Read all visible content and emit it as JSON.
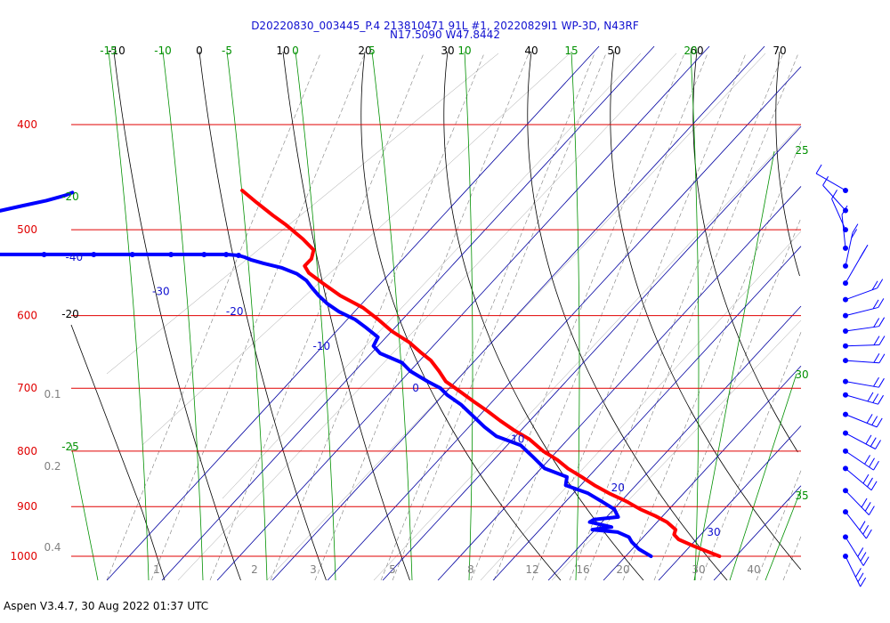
{
  "header": {
    "line1": "D20220830_003445_P.4 213810471 91L #1, 20220829I1 WP-3D, N43RF",
    "line2": "N17.5090 W47.8442"
  },
  "footer": {
    "text": "Aspen V3.4.7, 30 Aug 2022  01:37 UTC"
  },
  "colors": {
    "isobar": "#e00000",
    "temperature": "#ff0000",
    "dewpoint": "#0000ff",
    "dry_adiabat": "#000000",
    "moist_adiabat": "#009000",
    "isotherm": "#0000a0",
    "mixing_ratio": "#808080",
    "label_blue": "#1010d0"
  },
  "chart_data": {
    "type": "line",
    "chart_kind": "skew-T log-P diagram",
    "y_scale": "log",
    "ylim": [
      1000,
      330
    ],
    "isobars": [
      400,
      500,
      600,
      700,
      800,
      900,
      1000
    ],
    "isotherms_c": [
      -80,
      -70,
      -60,
      -50,
      -40,
      -30,
      -20,
      -10,
      0,
      10,
      20,
      30
    ],
    "mixing_ratio_labels": [
      "0.1",
      "0.2",
      "0.4",
      "1",
      "2",
      "3",
      "5",
      "8",
      "12",
      "16",
      "20",
      "30",
      "40"
    ],
    "dry_adiabat_labels": [
      "-10",
      "0",
      "10",
      "20",
      "30",
      "40",
      "50",
      "60",
      "70",
      "-20"
    ],
    "moist_adiabat_labels": [
      "-15",
      "-10",
      "-5",
      "0",
      "5",
      "10",
      "15",
      "20",
      "-20",
      "-25",
      "25",
      "30",
      "35"
    ],
    "series": [
      {
        "name": "Temperature",
        "points": [
          [
            1000,
            27.0
          ],
          [
            980,
            24.2
          ],
          [
            965,
            22.4
          ],
          [
            955,
            22.4
          ],
          [
            945,
            23.5
          ],
          [
            930,
            23.2
          ],
          [
            918,
            22.1
          ],
          [
            905,
            20.5
          ],
          [
            890,
            19.3
          ],
          [
            875,
            17.5
          ],
          [
            860,
            16.2
          ],
          [
            845,
            15.3
          ],
          [
            830,
            14.2
          ],
          [
            815,
            13.7
          ],
          [
            800,
            12.6
          ],
          [
            780,
            12.1
          ],
          [
            765,
            10.8
          ],
          [
            750,
            9.9
          ],
          [
            735,
            9.2
          ],
          [
            720,
            8.3
          ],
          [
            705,
            7.5
          ],
          [
            690,
            6.6
          ],
          [
            675,
            7.1
          ],
          [
            660,
            7.4
          ],
          [
            648,
            6.9
          ],
          [
            635,
            6.5
          ],
          [
            620,
            5.2
          ],
          [
            605,
            4.7
          ],
          [
            590,
            3.9
          ],
          [
            575,
            1.8
          ],
          [
            560,
            0.7
          ],
          [
            548,
            -0.1
          ],
          [
            540,
            0.3
          ],
          [
            532,
            2.7
          ],
          [
            522,
            4.6
          ],
          [
            510,
            4.5
          ],
          [
            495,
            3.8
          ],
          [
            485,
            3.0
          ],
          [
            472,
            2.2
          ],
          [
            460,
            1.6
          ]
        ]
      },
      {
        "name": "Dewpoint",
        "points": [
          [
            1000,
            14.6
          ],
          [
            985,
            13.6
          ],
          [
            970,
            13.5
          ],
          [
            960,
            13.8
          ],
          [
            950,
            12.6
          ],
          [
            945,
            8.4
          ],
          [
            940,
            12.3
          ],
          [
            930,
            9.2
          ],
          [
            925,
            10.4
          ],
          [
            920,
            15.2
          ],
          [
            905,
            15.8
          ],
          [
            890,
            14.8
          ],
          [
            875,
            13.7
          ],
          [
            860,
            11.0
          ],
          [
            845,
            12.6
          ],
          [
            830,
            10.0
          ],
          [
            810,
            9.8
          ],
          [
            790,
            9.5
          ],
          [
            775,
            6.6
          ],
          [
            760,
            6.0
          ],
          [
            740,
            5.7
          ],
          [
            725,
            5.5
          ],
          [
            710,
            4.6
          ],
          [
            700,
            4.5
          ],
          [
            690,
            3.3
          ],
          [
            675,
            1.9
          ],
          [
            663,
            1.8
          ],
          [
            650,
            -0.6
          ],
          [
            640,
            -0.6
          ],
          [
            628,
            1.7
          ],
          [
            615,
            1.1
          ],
          [
            605,
            0.5
          ],
          [
            595,
            -1.1
          ],
          [
            585,
            -1.9
          ],
          [
            575,
            -2.1
          ],
          [
            565,
            -2.0
          ],
          [
            557,
            -1.8
          ],
          [
            549,
            -2.4
          ],
          [
            542,
            -4.2
          ],
          [
            537,
            -6.7
          ],
          [
            533,
            -8.4
          ],
          [
            530,
            -9.1
          ],
          [
            528,
            -9.9
          ],
          [
            527,
            -12.0
          ],
          [
            527,
            -16.0
          ],
          [
            527,
            -22.0
          ],
          [
            527,
            -29.0
          ],
          [
            527,
            -36.0
          ],
          [
            527,
            -45.0
          ],
          [
            527,
            -55.0
          ],
          [
            526,
            -60.0
          ],
          [
            525,
            -62.5
          ],
          [
            520,
            -56.0
          ],
          [
            516,
            -54.2
          ],
          [
            511,
            -55.4
          ],
          [
            505,
            -58.0
          ],
          [
            500,
            -59.5
          ],
          [
            495,
            -56.2
          ],
          [
            490,
            -52.9
          ],
          [
            485,
            -49.8
          ],
          [
            480,
            -45.4
          ],
          [
            475,
            -40.6
          ],
          [
            470,
            -35.6
          ],
          [
            465,
            -31.4
          ],
          [
            462,
            -29.5
          ]
        ]
      }
    ],
    "wind_barbs_pressure_hpa": [
      460,
      480,
      500,
      520,
      540,
      560,
      580,
      600,
      620,
      640,
      660,
      690,
      710,
      740,
      770,
      800,
      830,
      870,
      910,
      960,
      1000
    ]
  }
}
